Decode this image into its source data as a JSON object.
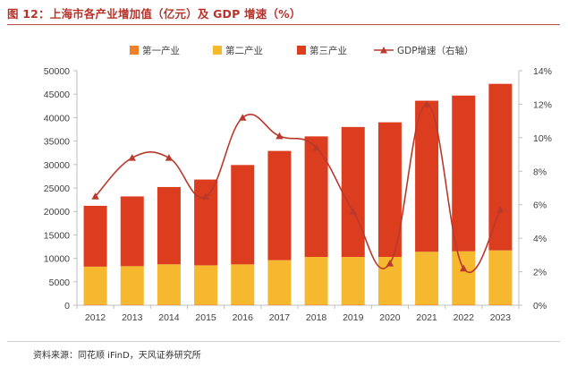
{
  "figure": {
    "title": "图 12：上海市各产业增加值（亿元）及 GDP 增速（%）",
    "source": "资料来源：同花顺 iFinD，天风证券研究所"
  },
  "colors": {
    "primary": "#f07f2a",
    "secondary": "#f5b82e",
    "tertiary": "#dd3d1f",
    "gdp_line": "#b83a2c",
    "title": "#b7322b"
  },
  "chart_data": {
    "type": "bar",
    "stacked": true,
    "categories": [
      "2012",
      "2013",
      "2014",
      "2015",
      "2016",
      "2017",
      "2018",
      "2019",
      "2020",
      "2021",
      "2022",
      "2023"
    ],
    "series": [
      {
        "name": "第一产业",
        "axis": "left",
        "values": [
          130,
          130,
          125,
          110,
          110,
          110,
          105,
          105,
          105,
          100,
          100,
          100
        ]
      },
      {
        "name": "第二产业",
        "axis": "left",
        "values": [
          8100,
          8200,
          8600,
          8400,
          8600,
          9500,
          10200,
          10200,
          10200,
          11300,
          11400,
          11600
        ]
      },
      {
        "name": "第三产业",
        "axis": "left",
        "values": [
          12970,
          14870,
          16475,
          18290,
          21190,
          23290,
          25695,
          27695,
          28695,
          32200,
          33200,
          35500
        ]
      }
    ],
    "line": {
      "name": "GDP增速（右轴）",
      "axis": "right",
      "type": "line",
      "values": [
        6.5,
        8.8,
        8.8,
        6.5,
        11.2,
        10.1,
        9.4,
        5.6,
        2.5,
        12.0,
        2.2,
        5.7
      ]
    },
    "y_left": {
      "min": 0,
      "max": 50000,
      "step": 5000,
      "ticks": [
        "0",
        "5000",
        "10000",
        "15000",
        "20000",
        "25000",
        "30000",
        "35000",
        "40000",
        "45000",
        "50000"
      ]
    },
    "y_right": {
      "min": 0,
      "max": 14,
      "step": 2,
      "ticks": [
        "0%",
        "2%",
        "4%",
        "6%",
        "8%",
        "10%",
        "12%",
        "14%"
      ]
    },
    "legend": [
      "第一产业",
      "第二产业",
      "第三产业",
      "GDP增速（右轴）"
    ],
    "legend_position": "top",
    "grid": false
  }
}
